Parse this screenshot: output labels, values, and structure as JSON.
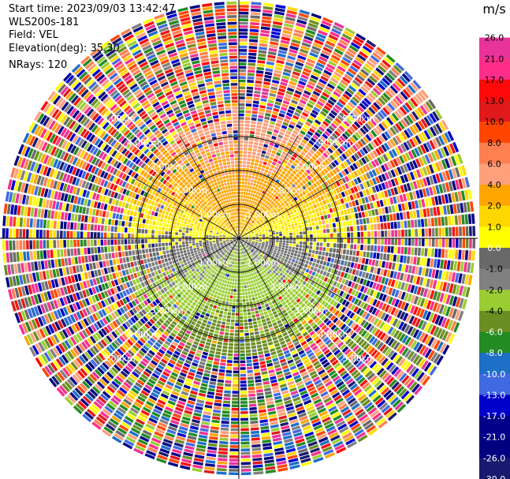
{
  "header": {
    "start_time": "Start time: 2023/09/03 13:42:47",
    "instrument": "WLS200s-181",
    "field": "Field: VEL",
    "elevation": "Elevation(deg): 35.30",
    "nrays": "NRays: 120"
  },
  "chart_data": {
    "type": "heatmap",
    "projection": "polar-ppi",
    "colorbar": {
      "unit": "m/s",
      "ticks": [
        "26.0",
        "21.0",
        "17.0",
        "13.0",
        "10.0",
        "8.0",
        "6.0",
        "4.0",
        "2.0",
        "1.0",
        "0.0",
        "-1.0",
        "-2.0",
        "-4.0",
        "-6.0",
        "-8.0",
        "-10.0",
        "-13.0",
        "-17.0",
        "-21.0",
        "-26.0",
        "-30.0"
      ],
      "colors": [
        "#ffffff",
        "#e8339a",
        "#ff2d8a",
        "#ff0a0a",
        "#e01a1a",
        "#ff4500",
        "#ff7f50",
        "#ffa07a",
        "#ffa500",
        "#ffd700",
        "#ffff00",
        "#696969",
        "#808080",
        "#9acd32",
        "#6b8e23",
        "#228b22",
        "#1e6fc8",
        "#4169e1",
        "#0000cd",
        "#00008b",
        "#000080",
        "#191970"
      ]
    },
    "range_rings_km": [
      1,
      2,
      3,
      4,
      5
    ],
    "ring_labels": {
      "r1": "1.00km",
      "r2": "2.00km",
      "r3": "3.00km",
      "r4": "4.00km",
      "r5": "5.00km"
    },
    "max_clean_range_km": 3.5,
    "max_range_km": 7.0,
    "n_rays": 120,
    "wind_direction_deg": 0,
    "wind_speed_mps": 3.0
  }
}
